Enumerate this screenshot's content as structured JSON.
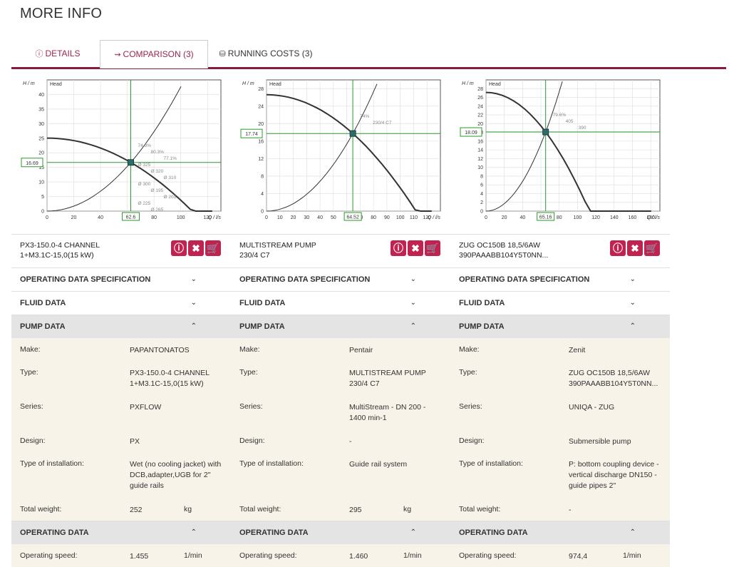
{
  "page": {
    "title": "MORE INFO"
  },
  "tabs": [
    {
      "label": "DETAILS",
      "icon": "info-icon"
    },
    {
      "label": "COMPARISON (3)",
      "icon": "compare-icon"
    },
    {
      "label": "RUNNING COSTS (3)",
      "icon": "costs-icon"
    }
  ],
  "sections": {
    "operating_spec": "OPERATING DATA SPECIFICATION",
    "fluid": "FLUID DATA",
    "pump": "PUMP DATA",
    "operating": "OPERATING DATA"
  },
  "fields": {
    "make": "Make:",
    "type": "Type:",
    "series": "Series:",
    "design": "Design:",
    "installation": "Type of installation:",
    "weight": "Total weight:",
    "speed": "Operating speed:"
  },
  "pumps": [
    {
      "name_line1": "PX3-150.0-4 CHANNEL",
      "name_line2": "1+M3.1C-15,0(15 kW)",
      "make": "PAPANTONATOS",
      "type_line1": "PX3-150.0-4 CHANNEL",
      "type_line2": "1+M3.1C-15,0(15 kW)",
      "series_line1": "PXFLOW",
      "series_line2": "",
      "design": "PX",
      "install_line1": "Wet (no cooling jacket) with",
      "install_line2": "DCB,adapter,UGB for 2\"",
      "install_line3": "guide rails",
      "weight": "252",
      "weight_unit": "kg",
      "speed": "1.455",
      "speed_unit": "1/min"
    },
    {
      "name_line1": "MULTISTREAM PUMP",
      "name_line2": "230/4 C7",
      "make": "Pentair",
      "type_line1": "MULTISTREAM PUMP",
      "type_line2": "230/4 C7",
      "series_line1": "MultiStream - DN 200 -",
      "series_line2": "1400 min-1",
      "design": "-",
      "install_line1": "Guide rail system",
      "install_line2": "",
      "install_line3": "",
      "weight": "295",
      "weight_unit": "kg",
      "speed": "1.460",
      "speed_unit": "1/min"
    },
    {
      "name_line1": "ZUG OC150B 18,5/6AW",
      "name_line2": "390PAAABB104Y5T0NN...",
      "make": "Zenit",
      "type_line1": "ZUG OC150B 18,5/6AW",
      "type_line2": "390PAAABB104Y5T0NN...",
      "series_line1": "UNIQA - ZUG",
      "series_line2": "",
      "design": "Submersible pump",
      "install_line1": "P: bottom coupling device -",
      "install_line2": "vertical discharge DN150 -",
      "install_line3": "guide pipes 2\"",
      "weight": "-",
      "weight_unit": "",
      "speed": "974,4",
      "speed_unit": "1/min"
    }
  ],
  "charts": [
    {
      "y_axis_label": "H / m",
      "x_axis_label": "Q / l/s",
      "legend": "Head",
      "xlim": [
        0,
        130
      ],
      "ylim": [
        0,
        45
      ],
      "x_ticks": [
        0,
        20,
        40,
        60,
        80,
        100,
        120
      ],
      "y_ticks": [
        0,
        5,
        10,
        15,
        20,
        25,
        30,
        35,
        40
      ],
      "op_q": "62.6",
      "op_h": "16.69",
      "annotations": [
        "74.3%",
        "80.3%",
        "77.1%",
        "Ø 325",
        "Ø 320",
        "Ø 310",
        "Ø 300",
        "Ø 195",
        "Ø 203",
        "Ø 225",
        "Ø 265"
      ]
    },
    {
      "y_axis_label": "H / m",
      "x_axis_label": "Q / l/s",
      "legend": "Head",
      "xlim": [
        0,
        130
      ],
      "ylim": [
        0,
        30
      ],
      "x_ticks": [
        0,
        10,
        20,
        30,
        40,
        50,
        60,
        70,
        80,
        90,
        100,
        110,
        120
      ],
      "y_ticks": [
        0,
        4,
        8,
        12,
        16,
        20,
        24,
        28
      ],
      "op_q": "64.52",
      "op_h": "17.74",
      "annotations": [
        "74%",
        "230/4 C7"
      ]
    },
    {
      "y_axis_label": "H / m",
      "x_axis_label": "Q / l/s",
      "legend": "Head",
      "xlim": [
        0,
        190
      ],
      "ylim": [
        0,
        30
      ],
      "x_ticks": [
        0,
        20,
        40,
        60,
        80,
        100,
        120,
        140,
        160,
        180
      ],
      "y_ticks": [
        0,
        2,
        4,
        6,
        8,
        10,
        12,
        14,
        16,
        18,
        20,
        22,
        24,
        26,
        28
      ],
      "op_q": "65.16",
      "op_h": "18.09",
      "annotations": [
        "79.6%",
        "405",
        "390"
      ]
    }
  ],
  "colors": {
    "accent": "#c0234f",
    "tab_border": "#8c1a3f",
    "green": "#2a9a2a",
    "row_bg": "#f7f3e9"
  }
}
